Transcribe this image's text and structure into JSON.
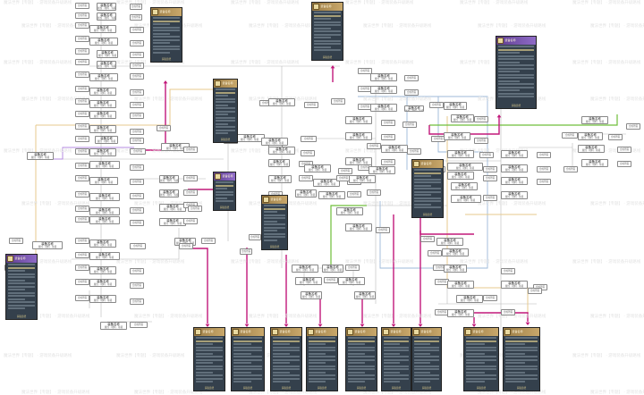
{
  "watermark": "魔法世界【专题】 · 游戏装备升级路线",
  "colors": {
    "gray": "#b8b8b8",
    "magenta": "#c2187a",
    "green": "#6fbf3a",
    "lightblue": "#9cb8d8",
    "tan": "#e7c98c",
    "lavender": "#b58be0",
    "card_dark": "#34404c"
  },
  "node_title": "装备名称",
  "node_sub": "属性 · 材料 · 等级",
  "small_label": "合成所需",
  "card_name": "装备名称",
  "card_footer": "获取途径"
}
